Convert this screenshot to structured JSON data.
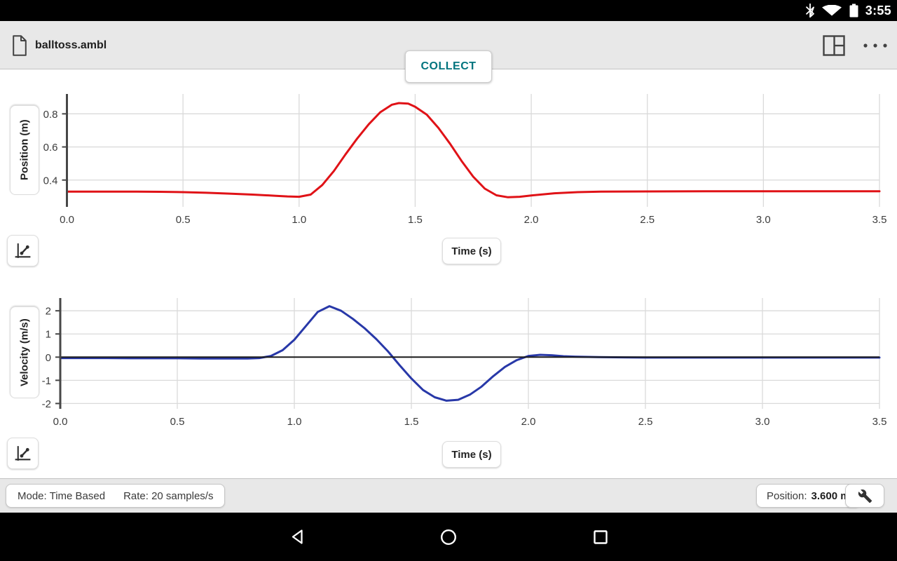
{
  "status_bar": {
    "time": "3:55"
  },
  "toolbar": {
    "file_name": "balltoss.ambl",
    "collect_label": "COLLECT"
  },
  "bottom_bar": {
    "mode_label": "Mode: Time Based",
    "rate_label": "Rate: 20 samples/s",
    "position_label": "Position:",
    "position_value": "3.600 m"
  },
  "colors": {
    "accent_teal": "#00747E",
    "position_series": "#E01217",
    "velocity_series": "#2838A8",
    "grid": "#DADADA",
    "axis": "#474747",
    "zero_line": "#1A1A1A",
    "tick_text": "#3C3C3C",
    "icon_dark": "#424242",
    "bar_background": "#E8E8E8"
  },
  "chart_data": [
    {
      "type": "line",
      "title": "",
      "xlabel": "Time (s)",
      "ylabel": "Position (m)",
      "xlim": [
        0,
        3.5
      ],
      "ylim": [
        0.238,
        0.92
      ],
      "xticks": [
        0,
        0.5,
        1.0,
        1.5,
        2.0,
        2.5,
        3.0,
        3.5
      ],
      "xtick_labels": [
        "0.0",
        "0.5",
        "1.0",
        "1.5",
        "2.0",
        "2.5",
        "3.0",
        "3.5"
      ],
      "yticks": [
        0.4,
        0.6,
        0.8
      ],
      "ytick_labels": [
        "0.4",
        "0.6",
        "0.8"
      ],
      "grid": true,
      "zero_line": false,
      "legend": "none",
      "series": [
        {
          "name": "Position",
          "color": "#E01217",
          "points": [
            [
              0.0,
              0.33
            ],
            [
              0.1,
              0.33
            ],
            [
              0.2,
              0.33
            ],
            [
              0.3,
              0.33
            ],
            [
              0.4,
              0.329
            ],
            [
              0.5,
              0.327
            ],
            [
              0.6,
              0.323
            ],
            [
              0.7,
              0.318
            ],
            [
              0.8,
              0.312
            ],
            [
              0.9,
              0.305
            ],
            [
              0.95,
              0.301
            ],
            [
              1.0,
              0.299
            ],
            [
              1.05,
              0.312
            ],
            [
              1.1,
              0.37
            ],
            [
              1.15,
              0.455
            ],
            [
              1.2,
              0.555
            ],
            [
              1.25,
              0.65
            ],
            [
              1.3,
              0.737
            ],
            [
              1.35,
              0.81
            ],
            [
              1.4,
              0.855
            ],
            [
              1.43,
              0.865
            ],
            [
              1.47,
              0.862
            ],
            [
              1.5,
              0.843
            ],
            [
              1.55,
              0.795
            ],
            [
              1.6,
              0.715
            ],
            [
              1.65,
              0.62
            ],
            [
              1.7,
              0.515
            ],
            [
              1.75,
              0.42
            ],
            [
              1.8,
              0.348
            ],
            [
              1.85,
              0.308
            ],
            [
              1.9,
              0.296
            ],
            [
              1.95,
              0.299
            ],
            [
              2.0,
              0.307
            ],
            [
              2.1,
              0.32
            ],
            [
              2.2,
              0.327
            ],
            [
              2.3,
              0.33
            ],
            [
              2.5,
              0.331
            ],
            [
              2.75,
              0.332
            ],
            [
              3.0,
              0.332
            ],
            [
              3.25,
              0.332
            ],
            [
              3.5,
              0.332
            ]
          ]
        }
      ]
    },
    {
      "type": "line",
      "title": "",
      "xlabel": "Time (s)",
      "ylabel": "Velocity (m/s)",
      "xlim": [
        0,
        3.5
      ],
      "ylim": [
        -2.23,
        2.55
      ],
      "xticks": [
        0,
        0.5,
        1.0,
        1.5,
        2.0,
        2.5,
        3.0,
        3.5
      ],
      "xtick_labels": [
        "0.0",
        "0.5",
        "1.0",
        "1.5",
        "2.0",
        "2.5",
        "3.0",
        "3.5"
      ],
      "yticks": [
        -2,
        -1,
        0,
        1,
        2
      ],
      "ytick_labels": [
        "-2",
        "-1",
        "0",
        "1",
        "2"
      ],
      "grid": true,
      "zero_line": true,
      "legend": "none",
      "series": [
        {
          "name": "Velocity",
          "color": "#2838A8",
          "points": [
            [
              0.0,
              -0.04
            ],
            [
              0.1,
              -0.04
            ],
            [
              0.2,
              -0.04
            ],
            [
              0.3,
              -0.05
            ],
            [
              0.4,
              -0.05
            ],
            [
              0.5,
              -0.05
            ],
            [
              0.6,
              -0.06
            ],
            [
              0.7,
              -0.06
            ],
            [
              0.8,
              -0.06
            ],
            [
              0.85,
              -0.04
            ],
            [
              0.9,
              0.05
            ],
            [
              0.95,
              0.3
            ],
            [
              1.0,
              0.75
            ],
            [
              1.05,
              1.35
            ],
            [
              1.1,
              1.95
            ],
            [
              1.15,
              2.2
            ],
            [
              1.2,
              2.0
            ],
            [
              1.25,
              1.65
            ],
            [
              1.3,
              1.25
            ],
            [
              1.35,
              0.78
            ],
            [
              1.4,
              0.25
            ],
            [
              1.45,
              -0.35
            ],
            [
              1.5,
              -0.92
            ],
            [
              1.55,
              -1.42
            ],
            [
              1.6,
              -1.73
            ],
            [
              1.65,
              -1.88
            ],
            [
              1.7,
              -1.84
            ],
            [
              1.75,
              -1.62
            ],
            [
              1.8,
              -1.27
            ],
            [
              1.85,
              -0.82
            ],
            [
              1.9,
              -0.42
            ],
            [
              1.95,
              -0.13
            ],
            [
              2.0,
              0.05
            ],
            [
              2.05,
              0.1
            ],
            [
              2.1,
              0.08
            ],
            [
              2.15,
              0.04
            ],
            [
              2.2,
              0.02
            ],
            [
              2.3,
              0.0
            ],
            [
              2.5,
              -0.02
            ],
            [
              2.75,
              -0.02
            ],
            [
              3.0,
              -0.02
            ],
            [
              3.25,
              -0.02
            ],
            [
              3.5,
              -0.02
            ]
          ]
        }
      ]
    }
  ]
}
